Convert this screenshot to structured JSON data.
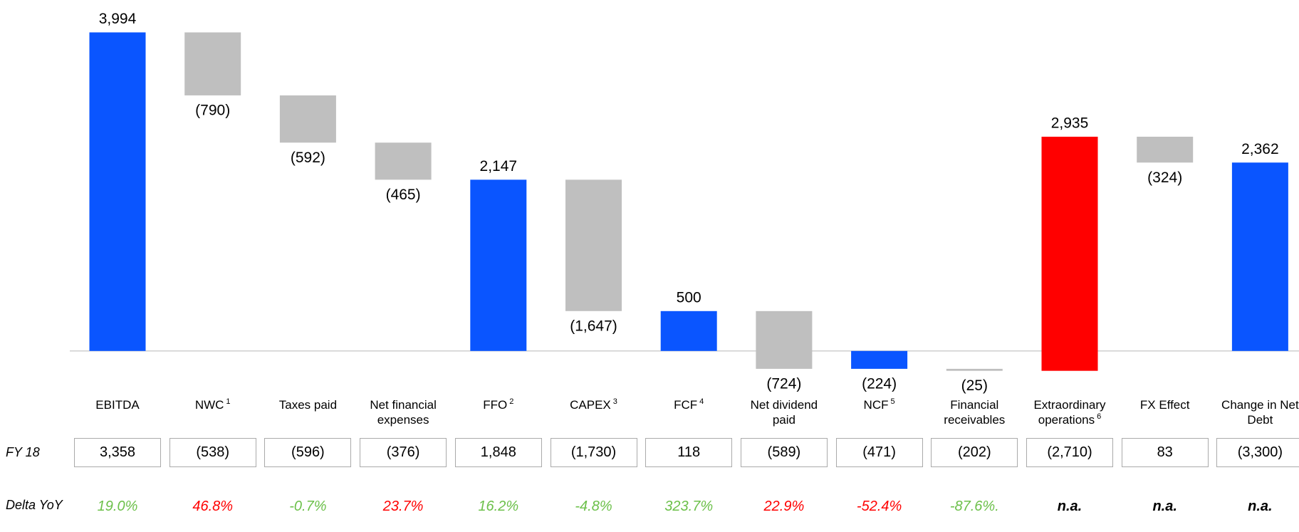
{
  "chart_data": {
    "type": "waterfall",
    "categories": [
      "EBITDA",
      "NWC",
      "Taxes paid",
      "Net financial expenses",
      "FFO",
      "CAPEX",
      "FCF",
      "Net dividend paid",
      "NCF",
      "Financial receivables",
      "Extraordinary operations",
      "FX Effect",
      "Change in Net Debt"
    ],
    "notes": [
      null,
      "1",
      null,
      null,
      "2",
      "3",
      "4",
      null,
      "5",
      null,
      "6",
      null,
      null
    ],
    "values": [
      3994,
      -790,
      -592,
      -465,
      2147,
      -1647,
      500,
      -724,
      -224,
      -25,
      2935,
      -324,
      2362
    ],
    "value_labels": [
      "3,994",
      "(790)",
      "(592)",
      "(465)",
      "2,147",
      "(1,647)",
      "500",
      "(724)",
      "(224)",
      "(25)",
      "2,935",
      "(324)",
      "2,362"
    ],
    "measures": [
      "absolute",
      "relative",
      "relative",
      "relative",
      "absolute",
      "relative",
      "absolute",
      "relative",
      "absolute",
      "relative",
      "relative",
      "relative",
      "absolute"
    ],
    "colors": [
      "#0a55ff",
      "#bfbfbf",
      "#bfbfbf",
      "#bfbfbf",
      "#0a55ff",
      "#bfbfbf",
      "#0a55ff",
      "#bfbfbf",
      "#0a55ff",
      "#bfbfbf",
      "#ff0000",
      "#bfbfbf",
      "#0a55ff"
    ],
    "ylim": [
      -600,
      4400
    ]
  },
  "table": {
    "rows": [
      {
        "label": "FY 18",
        "cells": [
          "3,358",
          "(538)",
          "(596)",
          "(376)",
          "1,848",
          "(1,730)",
          "118",
          "(589)",
          "(471)",
          "(202)",
          "(2,710)",
          "83",
          "(3,300)"
        ]
      },
      {
        "label": "Delta YoY",
        "cells": [
          "19.0%",
          "46.8%",
          "-0.7%",
          "23.7%",
          "16.2%",
          "-4.8%",
          "323.7%",
          "22.9%",
          "-52.4%",
          "-87.6%.",
          "n.a.",
          "n.a.",
          "n.a."
        ],
        "colors": [
          "#6cc04a",
          "#ff0000",
          "#6cc04a",
          "#ff0000",
          "#6cc04a",
          "#6cc04a",
          "#6cc04a",
          "#ff0000",
          "#ff0000",
          "#6cc04a",
          "#000000",
          "#000000",
          "#000000"
        ]
      }
    ]
  }
}
